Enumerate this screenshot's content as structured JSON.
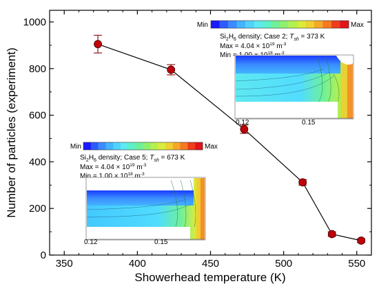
{
  "chart_data": {
    "type": "scatter",
    "xlabel": "Showerhead temperature (K)",
    "ylabel": "Number of particles (experiment)",
    "xlim": [
      340,
      560
    ],
    "ylim": [
      0,
      1050
    ],
    "xticks": [
      350,
      400,
      450,
      500,
      550
    ],
    "yticks": [
      0,
      200,
      400,
      600,
      800,
      1000
    ],
    "grid": false,
    "series": [
      {
        "marker": "circle",
        "line": "solid",
        "marker_color": "#c0000a",
        "line_color": "#000000",
        "x": [
          373,
          423,
          473,
          513,
          533,
          553
        ],
        "y": [
          905,
          795,
          540,
          312,
          90,
          62
        ],
        "err": [
          38,
          22,
          18,
          12,
          10,
          8
        ]
      }
    ],
    "insets": [
      {
        "id": "case2",
        "colorbar_min_label": "Min",
        "colorbar_max_label": "Max",
        "line1_pre": "Si",
        "line1_sub1": "2",
        "line1_mid": "H",
        "line1_sub2": "6",
        "line1_post": " density; Case 2; ",
        "temp_T": "T",
        "temp_sub": "sh",
        "temp_val": " = 373 K",
        "max_text": "Max = 4.04 × 10",
        "max_exp": "19",
        "max_unit": " m",
        "max_unit_exp": "-3",
        "min_text": "Min = 1.00 × 10",
        "min_exp": "18",
        "min_unit": " m",
        "min_unit_exp": "-3",
        "tick_left": "0.12",
        "tick_mid": "0.15"
      },
      {
        "id": "case5",
        "colorbar_min_label": "Min",
        "colorbar_max_label": "Max",
        "line1_pre": "Si",
        "line1_sub1": "2",
        "line1_mid": "H",
        "line1_sub2": "6",
        "line1_post": " density; Case 5; ",
        "temp_T": "T",
        "temp_sub": "sh",
        "temp_val": " = 673 K",
        "max_text": "Max = 4.04 × 10",
        "max_exp": "19",
        "max_unit": " m",
        "max_unit_exp": "-3",
        "min_text": "Min = 1.00 × 10",
        "min_exp": "18",
        "min_unit": " m",
        "min_unit_exp": "-3",
        "tick_left": "0.12",
        "tick_mid": "0.15"
      }
    ],
    "colormap": [
      "#1a1aff",
      "#2e5bff",
      "#3a8cff",
      "#44b4ff",
      "#4fd2ff",
      "#5ee8f0",
      "#5ff0c8",
      "#6ef09a",
      "#8ef070",
      "#b4f050",
      "#d8ec3c",
      "#f0d030",
      "#f5a828",
      "#f57a22",
      "#ee3c1c",
      "#e0141a"
    ]
  }
}
